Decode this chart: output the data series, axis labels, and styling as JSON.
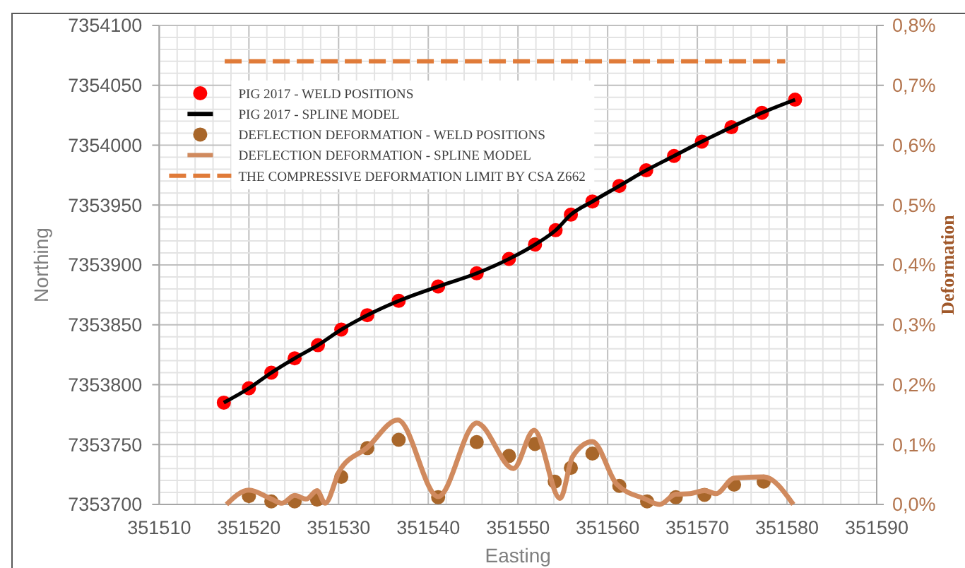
{
  "chart_data": {
    "type": "scatter",
    "xlabel": "Easting",
    "ylabel": "Northing",
    "y2label": "Deformation",
    "xlim": [
      351510,
      351590
    ],
    "ylim": [
      7353700,
      7354100
    ],
    "y2lim": [
      0,
      0.8
    ],
    "xticks": [
      351510,
      {
        "value": 351512,
        "label": null
      },
      {
        "value": 351514,
        "label": null
      },
      {
        "value": 351516,
        "label": null
      },
      {
        "value": 351518,
        "label": null
      },
      351520,
      {
        "value": 351522,
        "label": null
      },
      {
        "value": 351524,
        "label": null
      },
      {
        "value": 351526,
        "label": null
      },
      {
        "value": 351528,
        "label": null
      },
      351530,
      {
        "value": 351532,
        "label": null
      },
      {
        "value": 351534,
        "label": null
      },
      {
        "value": 351536,
        "label": null
      },
      {
        "value": 351538,
        "label": null
      },
      351540,
      {
        "value": 351542,
        "label": null
      },
      {
        "value": 351544,
        "label": null
      },
      {
        "value": 351546,
        "label": null
      },
      {
        "value": 351548,
        "label": null
      },
      351550,
      {
        "value": 351552,
        "label": null
      },
      {
        "value": 351554,
        "label": null
      },
      {
        "value": 351556,
        "label": null
      },
      {
        "value": 351558,
        "label": null
      },
      351560,
      {
        "value": 351562,
        "label": null
      },
      {
        "value": 351564,
        "label": null
      },
      {
        "value": 351566,
        "label": null
      },
      {
        "value": 351568,
        "label": null
      },
      351570,
      {
        "value": 351572,
        "label": null
      },
      {
        "value": 351574,
        "label": null
      },
      {
        "value": 351576,
        "label": null
      },
      {
        "value": 351578,
        "label": null
      },
      351580,
      {
        "value": 351582,
        "label": null
      },
      {
        "value": 351584,
        "label": null
      },
      {
        "value": 351586,
        "label": null
      },
      {
        "value": 351588,
        "label": null
      },
      351590
    ],
    "yticks": [
      7353700,
      {
        "value": 7353710,
        "label": null
      },
      {
        "value": 7353720,
        "label": null
      },
      {
        "value": 7353730,
        "label": null
      },
      {
        "value": 7353740,
        "label": null
      },
      7353750,
      {
        "value": 7353760,
        "label": null
      },
      {
        "value": 7353770,
        "label": null
      },
      {
        "value": 7353780,
        "label": null
      },
      {
        "value": 7353790,
        "label": null
      },
      7353800,
      {
        "value": 7353810,
        "label": null
      },
      {
        "value": 7353820,
        "label": null
      },
      {
        "value": 7353830,
        "label": null
      },
      {
        "value": 7353840,
        "label": null
      },
      7353850,
      {
        "value": 7353860,
        "label": null
      },
      {
        "value": 7353870,
        "label": null
      },
      {
        "value": 7353880,
        "label": null
      },
      {
        "value": 7353890,
        "label": null
      },
      7353900,
      {
        "value": 7353910,
        "label": null
      },
      {
        "value": 7353920,
        "label": null
      },
      {
        "value": 7353930,
        "label": null
      },
      {
        "value": 7353940,
        "label": null
      },
      7353950,
      {
        "value": 7353960,
        "label": null
      },
      {
        "value": 7353970,
        "label": null
      },
      {
        "value": 7353980,
        "label": null
      },
      {
        "value": 7353990,
        "label": null
      },
      7354000,
      {
        "value": 7354010,
        "label": null
      },
      {
        "value": 7354020,
        "label": null
      },
      {
        "value": 7354030,
        "label": null
      },
      {
        "value": 7354040,
        "label": null
      },
      7354050,
      {
        "value": 7354060,
        "label": null
      },
      {
        "value": 7354070,
        "label": null
      },
      {
        "value": 7354080,
        "label": null
      },
      {
        "value": 7354090,
        "label": null
      },
      7354100
    ],
    "y2ticks": [
      {
        "value": 0,
        "label": "0,0%"
      },
      {
        "value": 0.1,
        "label": "0,1%"
      },
      {
        "value": 0.2,
        "label": "0,2%"
      },
      {
        "value": 0.3,
        "label": "0,3%"
      },
      {
        "value": 0.4,
        "label": "0,4%"
      },
      {
        "value": 0.5,
        "label": "0,5%"
      },
      {
        "value": 0.6,
        "label": "0,6%"
      },
      {
        "value": 0.7,
        "label": "0,7%"
      },
      {
        "value": 0.8,
        "label": "0,8%"
      }
    ],
    "grid": true,
    "legend": "top left",
    "series": [
      {
        "name": "PIG 2017 - WELD POSITIONS",
        "marker": "circle",
        "color": "#ff0000",
        "x": [
          351517.2,
          351520.0,
          351522.5,
          351525.1,
          351527.7,
          351530.3,
          351533.2,
          351536.7,
          351541.1,
          351545.4,
          351549.0,
          351551.9,
          351554.2,
          351555.9,
          351558.3,
          351561.3,
          351564.3,
          351567.4,
          351570.5,
          351573.8,
          351577.2,
          351580.9
        ],
        "values": [
          7353785,
          7353797,
          7353810,
          7353822,
          7353833,
          7353846,
          7353858,
          7353870,
          7353882,
          7353893,
          7353905,
          7353917,
          7353929,
          7353942,
          7353953,
          7353966,
          7353979,
          7353991,
          7354003,
          7354015,
          7354027,
          7354038
        ]
      },
      {
        "name": "PIG 2017 - SPLINE MODEL",
        "type": "line",
        "color": "#000000",
        "x": [
          351517.2,
          351520.0,
          351522.5,
          351525.1,
          351527.7,
          351530.3,
          351533.2,
          351536.7,
          351541.1,
          351545.4,
          351549.0,
          351551.9,
          351554.2,
          351555.9,
          351558.3,
          351561.3,
          351564.3,
          351567.4,
          351570.5,
          351573.8,
          351577.2,
          351580.9
        ],
        "values": [
          7353785,
          7353797,
          7353810,
          7353822,
          7353833,
          7353846,
          7353858,
          7353870,
          7353882,
          7353893,
          7353905,
          7353917,
          7353929,
          7353942,
          7353953,
          7353966,
          7353979,
          7353991,
          7354003,
          7354015,
          7354027,
          7354038
        ]
      },
      {
        "name": "DEFLECTION DEFORMATION - WELD POSITIONS",
        "marker": "circle",
        "axis": "y2",
        "color": "#a8662a",
        "x": [
          351520.0,
          351522.5,
          351525.1,
          351527.6,
          351530.3,
          351533.2,
          351536.7,
          351541.1,
          351545.4,
          351549.0,
          351551.9,
          351554.1,
          351555.9,
          351558.3,
          351561.3,
          351564.4,
          351567.6,
          351570.8,
          351574.1,
          351577.4
        ],
        "values": [
          0.014,
          0.005,
          0.005,
          0.008,
          0.046,
          0.094,
          0.108,
          0.012,
          0.104,
          0.081,
          0.101,
          0.038,
          0.061,
          0.085,
          0.031,
          0.005,
          0.012,
          0.016,
          0.033,
          0.038
        ]
      },
      {
        "name": "DEFLECTION DEFORMATION - SPLINE MODEL",
        "type": "line",
        "axis": "y2",
        "color": "#d08a5e",
        "x": [
          351517.5,
          351520.0,
          351522.5,
          351523.7,
          351525.1,
          351526.4,
          351527.6,
          351528.5,
          351530.1,
          351533.2,
          351536.6,
          351541.1,
          351545.4,
          351549.5,
          351551.8,
          351554.7,
          351556.1,
          351558.3,
          351561.0,
          351564.2,
          351565.8,
          351567.6,
          351569.2,
          351570.8,
          351572.1,
          351574.1,
          351577.4,
          351580.7
        ],
        "values": [
          0,
          0.024,
          0.009,
          0.002,
          0.015,
          0.009,
          0.023,
          0.002,
          0.056,
          0.095,
          0.141,
          0.013,
          0.136,
          0.06,
          0.124,
          0.01,
          0.08,
          0.105,
          0.034,
          0.009,
          0,
          0.017,
          0.018,
          0.023,
          0.018,
          0.044,
          0.046,
          0
        ]
      },
      {
        "name": "THE COMPRESSIVE DEFORMATION LIMIT BY CSA Z662",
        "type": "line",
        "axis": "y2",
        "line_style": "dashed",
        "color": "#e07b39",
        "x": [
          351517.3,
          351579.8
        ],
        "values": [
          0.74,
          0.74
        ]
      }
    ]
  }
}
